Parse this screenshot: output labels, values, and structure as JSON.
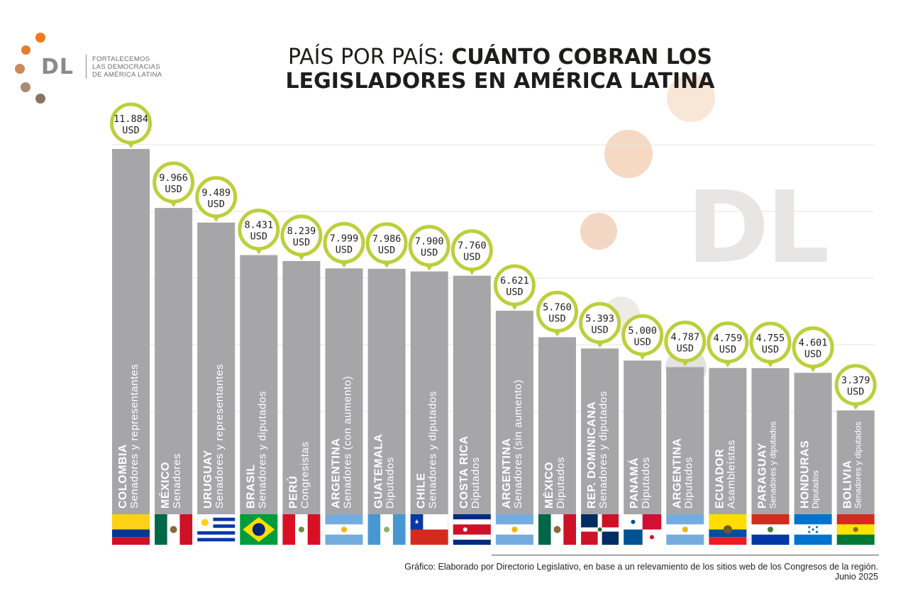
{
  "logo": {
    "mark": "DL",
    "lines": [
      "FORTALECEMOS",
      "LAS DEMOCRACIAS",
      "DE AMÉRICA LATINA"
    ]
  },
  "title": {
    "line1_light": "PAÍS POR PAÍS: ",
    "line1_bold": "CUÁNTO COBRAN LOS",
    "line2_bold": "LEGISLADORES EN AMÉRICA LATINA"
  },
  "watermark": "DL",
  "source": {
    "text": "Gráfico: Elaborado por Directorio Legislativo, en base a un relevamiento de los sitios web de los Congresos de la región.",
    "date": "Junio 2025"
  },
  "colors": {
    "bar": "#a6a6a8",
    "bubble_border": "#bccf3c",
    "text_dark": "#1d1d1b",
    "label_white": "#ffffff",
    "grid": "#e6e6e6"
  },
  "chart_data": {
    "type": "bar",
    "unit": "USD",
    "ylim": [
      0,
      12000
    ],
    "grid": true,
    "categories": [
      {
        "country": "COLOMBIA",
        "chamber": "Senadores y representantes",
        "value": 11884,
        "label": "11.884",
        "flag": "colombia"
      },
      {
        "country": "MÉXICO",
        "chamber": "Senadores",
        "value": 9966,
        "label": "9.966",
        "flag": "mexico"
      },
      {
        "country": "URUGUAY",
        "chamber": "Senadores y representantes",
        "value": 9489,
        "label": "9.489",
        "flag": "uruguay"
      },
      {
        "country": "BRASIL",
        "chamber": "Senadores y diputados",
        "value": 8431,
        "label": "8.431",
        "flag": "brazil"
      },
      {
        "country": "PERÚ",
        "chamber": "Congresistas",
        "value": 8239,
        "label": "8.239",
        "flag": "peru"
      },
      {
        "country": "ARGENTINA",
        "chamber": "Senadores (con aumento)",
        "value": 7999,
        "label": "7.999",
        "flag": "argentina"
      },
      {
        "country": "GUATEMALA",
        "chamber": "Diputados",
        "value": 7986,
        "label": "7.986",
        "flag": "guatemala"
      },
      {
        "country": "CHILE",
        "chamber": "Senadores y diputados",
        "value": 7900,
        "label": "7.900",
        "flag": "chile"
      },
      {
        "country": "COSTA RICA",
        "chamber": "Diputados",
        "value": 7760,
        "label": "7.760",
        "flag": "costarica"
      },
      {
        "country": "ARGENTINA",
        "chamber": "Senadores (sin aumento)",
        "value": 6621,
        "label": "6.621",
        "flag": "argentina"
      },
      {
        "country": "MÉXICO",
        "chamber": "Diputados",
        "value": 5760,
        "label": "5.760",
        "flag": "mexico"
      },
      {
        "country": "REP. DOMINICANA",
        "chamber": "Senadores y diputados",
        "value": 5393,
        "label": "5.393",
        "flag": "dominicana"
      },
      {
        "country": "PANAMÁ",
        "chamber": "Diputados",
        "value": 5000,
        "label": "5.000",
        "flag": "panama"
      },
      {
        "country": "ARGENTINA",
        "chamber": "Diputados",
        "value": 4787,
        "label": "4.787",
        "flag": "argentina"
      },
      {
        "country": "ECUADOR",
        "chamber": "Asambleístas",
        "value": 4759,
        "label": "4.759",
        "flag": "ecuador"
      },
      {
        "country": "PARAGUAY",
        "chamber": "Senadores y diputados",
        "value": 4755,
        "label": "4.755",
        "flag": "paraguay"
      },
      {
        "country": "HONDURAS",
        "chamber": "Diputados",
        "value": 4601,
        "label": "4.601",
        "flag": "honduras"
      },
      {
        "country": "BOLIVIA",
        "chamber": "Senadores y diputados",
        "value": 3379,
        "label": "3.379",
        "flag": "bolivia"
      }
    ]
  }
}
